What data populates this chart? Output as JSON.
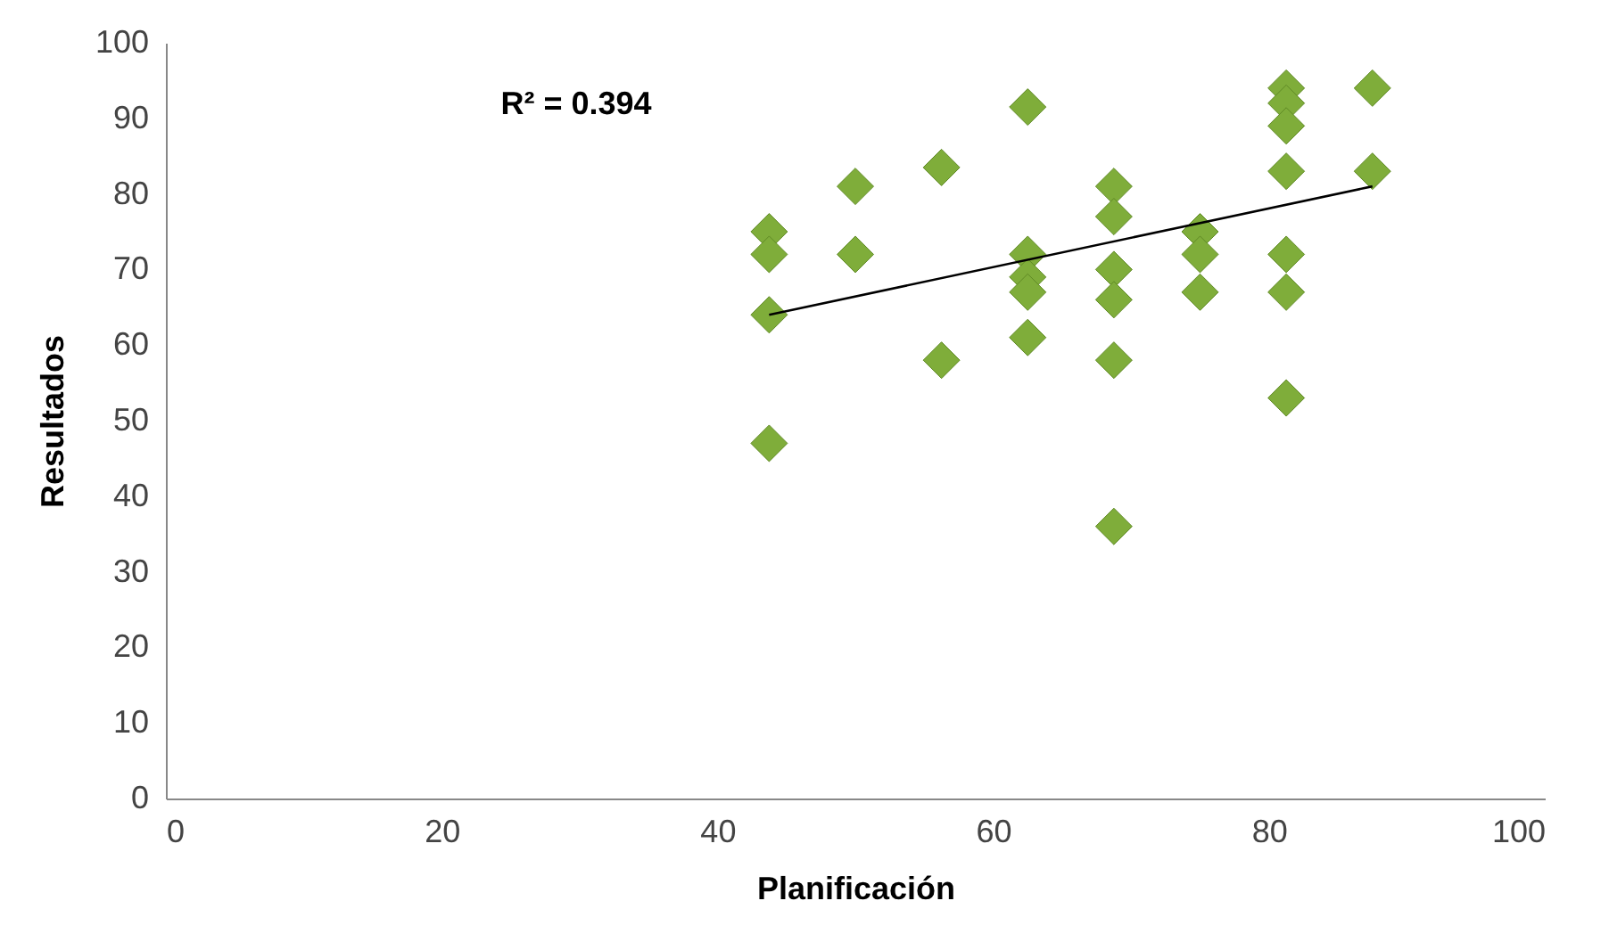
{
  "chart_data": {
    "type": "scatter",
    "xlabel": "Planificación",
    "ylabel": "Resultados",
    "annotations": [
      "R² = 0.394"
    ],
    "xlim": [
      0,
      100
    ],
    "xticks": [
      0,
      20,
      40,
      60,
      80,
      100
    ],
    "ylim": [
      0,
      100
    ],
    "yticks": [
      0,
      10,
      20,
      30,
      40,
      50,
      60,
      70,
      80,
      90,
      100
    ],
    "grid": false,
    "series": [
      {
        "marker": "diamond",
        "color": "#7fad3a",
        "x": [
          43.75,
          43.75,
          43.75,
          43.75,
          50,
          50,
          56.25,
          56.25,
          62.5,
          62.5,
          62.5,
          62.5,
          62.5,
          68.75,
          68.75,
          68.75,
          68.75,
          68.75,
          68.75,
          75,
          75,
          75,
          81.25,
          81.25,
          81.25,
          81.25,
          81.25,
          81.25,
          81.25,
          87.5,
          87.5
        ],
        "values": [
          75,
          72,
          64,
          47,
          81,
          72,
          83.5,
          58,
          91.5,
          72,
          69,
          67,
          61,
          81,
          77,
          70,
          66,
          58,
          36,
          75,
          72,
          67,
          94,
          92,
          89,
          83,
          72,
          67,
          53,
          94,
          83
        ]
      },
      {
        "type": "line",
        "color": "#000000",
        "x": [
          43.75,
          87.5
        ],
        "values": [
          64,
          81
        ]
      }
    ]
  }
}
